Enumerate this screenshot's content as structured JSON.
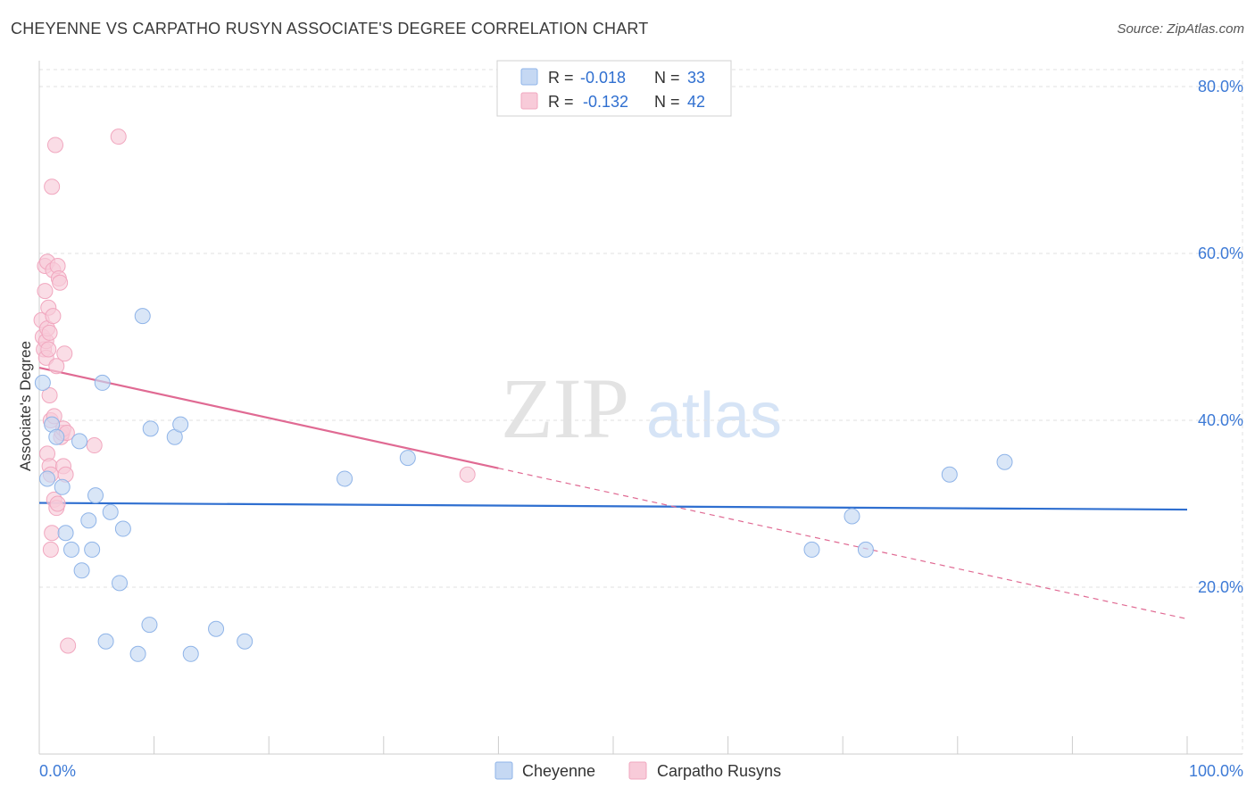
{
  "chart_data": {
    "type": "scatter",
    "title": "CHEYENNE VS CARPATHO RUSYN ASSOCIATE'S DEGREE CORRELATION CHART",
    "source": "Source: ZipAtlas.com",
    "watermark": {
      "zip": "ZIP",
      "atlas": "atlas"
    },
    "xlabel": "",
    "ylabel": "Associate's Degree",
    "xlim": [
      0,
      100
    ],
    "ylim": [
      0,
      85
    ],
    "x_tick_labels": [
      {
        "value": 0,
        "label": "0.0%"
      },
      {
        "value": 100,
        "label": "100.0%"
      }
    ],
    "y_tick_labels": [
      {
        "value": 20,
        "label": "20.0%"
      },
      {
        "value": 40,
        "label": "40.0%"
      },
      {
        "value": 60,
        "label": "60.0%"
      },
      {
        "value": 80,
        "label": "80.0%"
      }
    ],
    "grid": true,
    "legend_position": "top-center",
    "series": [
      {
        "name": "Cheyenne",
        "color": "#8fb4e8",
        "fill": "#c5d8f3",
        "line_color": "#2f6fd0",
        "R": "-0.018",
        "N": "33",
        "R_label": "R =",
        "N_label": "N =",
        "trend": {
          "x0": 0,
          "y0": 30.1,
          "x1": 100,
          "y1": 29.3,
          "solid_until": 100
        },
        "points": [
          [
            0.3,
            44.5
          ],
          [
            0.7,
            33.0
          ],
          [
            1.1,
            39.5
          ],
          [
            1.5,
            38.0
          ],
          [
            2.0,
            32.0
          ],
          [
            2.3,
            26.5
          ],
          [
            2.8,
            24.5
          ],
          [
            3.5,
            37.5
          ],
          [
            3.7,
            22.0
          ],
          [
            4.3,
            28.0
          ],
          [
            4.6,
            24.5
          ],
          [
            4.9,
            31.0
          ],
          [
            5.5,
            44.5
          ],
          [
            5.8,
            13.5
          ],
          [
            6.2,
            29.0
          ],
          [
            7.0,
            20.5
          ],
          [
            7.3,
            27.0
          ],
          [
            8.6,
            12.0
          ],
          [
            9.0,
            52.5
          ],
          [
            9.6,
            15.5
          ],
          [
            9.7,
            39.0
          ],
          [
            11.8,
            38.0
          ],
          [
            12.3,
            39.5
          ],
          [
            13.2,
            12.0
          ],
          [
            15.4,
            15.0
          ],
          [
            17.9,
            13.5
          ],
          [
            26.6,
            33.0
          ],
          [
            32.1,
            35.5
          ],
          [
            67.3,
            24.5
          ],
          [
            70.8,
            28.5
          ],
          [
            72.0,
            24.5
          ],
          [
            79.3,
            33.5
          ],
          [
            84.1,
            35.0
          ]
        ]
      },
      {
        "name": "Carpatho Rusyns",
        "color": "#f1a7bf",
        "fill": "#f8cbd9",
        "line_color": "#e06a93",
        "R": "-0.132",
        "N": "42",
        "R_label": "R =",
        "N_label": "N =",
        "trend": {
          "x0": 0,
          "y0": 46.3,
          "x1": 100,
          "y1": 16.2,
          "solid_until": 40
        },
        "points": [
          [
            0.2,
            52.0
          ],
          [
            0.3,
            50.0
          ],
          [
            0.4,
            48.5
          ],
          [
            0.5,
            55.5
          ],
          [
            0.5,
            58.5
          ],
          [
            0.6,
            47.5
          ],
          [
            0.6,
            49.5
          ],
          [
            0.7,
            51.0
          ],
          [
            0.7,
            59.0
          ],
          [
            0.7,
            36.0
          ],
          [
            0.8,
            53.5
          ],
          [
            0.8,
            48.5
          ],
          [
            0.9,
            50.5
          ],
          [
            0.9,
            34.5
          ],
          [
            0.9,
            43.0
          ],
          [
            1.0,
            40.0
          ],
          [
            1.0,
            33.5
          ],
          [
            1.0,
            24.5
          ],
          [
            1.1,
            26.5
          ],
          [
            1.1,
            68.0
          ],
          [
            1.2,
            52.5
          ],
          [
            1.2,
            58.0
          ],
          [
            1.3,
            30.5
          ],
          [
            1.3,
            40.5
          ],
          [
            1.4,
            73.0
          ],
          [
            1.5,
            29.5
          ],
          [
            1.6,
            30.0
          ],
          [
            1.6,
            58.5
          ],
          [
            1.7,
            57.0
          ],
          [
            1.8,
            56.5
          ],
          [
            1.9,
            38.0
          ],
          [
            2.0,
            38.5
          ],
          [
            2.1,
            39.0
          ],
          [
            2.1,
            34.5
          ],
          [
            2.3,
            33.5
          ],
          [
            2.4,
            38.5
          ],
          [
            2.5,
            13.0
          ],
          [
            4.8,
            37.0
          ],
          [
            6.9,
            74.0
          ],
          [
            37.3,
            33.5
          ],
          [
            1.5,
            46.5
          ],
          [
            2.2,
            48.0
          ]
        ]
      }
    ]
  }
}
